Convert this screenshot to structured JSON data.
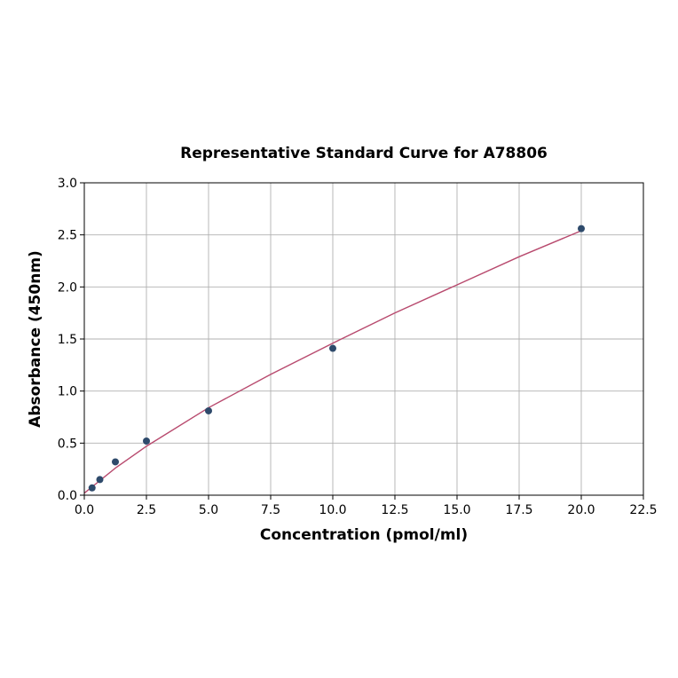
{
  "chart_data": {
    "type": "scatter",
    "title": "Representative Standard Curve for A78806",
    "xlabel": "Concentration (pmol/ml)",
    "ylabel": "Absorbance (450nm)",
    "xlim": [
      0,
      22.5
    ],
    "ylim": [
      0,
      3.0
    ],
    "grid": true,
    "x_ticks": [
      "0.0",
      "2.5",
      "5.0",
      "7.5",
      "10.0",
      "12.5",
      "15.0",
      "17.5",
      "20.0",
      "22.5"
    ],
    "y_ticks": [
      "0.0",
      "0.5",
      "1.0",
      "1.5",
      "2.0",
      "2.5",
      "3.0"
    ],
    "series": [
      {
        "kind": "points",
        "color": "#2e4a6b",
        "x": [
          0.3125,
          0.625,
          1.25,
          2.5,
          5,
          10,
          20
        ],
        "y": [
          0.07,
          0.15,
          0.32,
          0.52,
          0.81,
          1.41,
          2.56
        ]
      },
      {
        "kind": "fit-line",
        "color": "#b84a6e",
        "x": [
          0,
          0.3125,
          0.625,
          1.25,
          2.5,
          5,
          7.5,
          10,
          12.5,
          15,
          17.5,
          20
        ],
        "y": [
          0.02,
          0.08,
          0.14,
          0.26,
          0.47,
          0.84,
          1.16,
          1.46,
          1.75,
          2.02,
          2.29,
          2.54
        ]
      }
    ]
  }
}
